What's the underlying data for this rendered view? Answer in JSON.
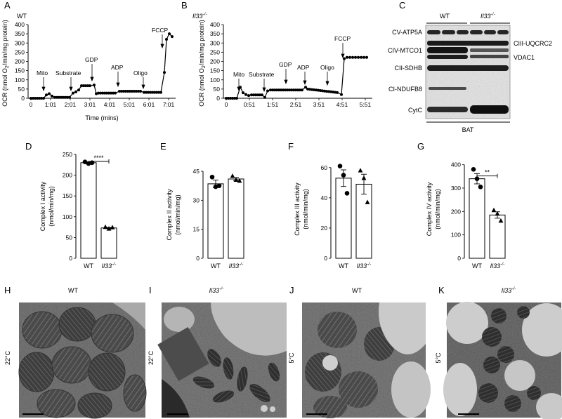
{
  "panels": {
    "A": "A",
    "B": "B",
    "C": "C",
    "D": "D",
    "E": "E",
    "F": "F",
    "G": "G",
    "H": "H",
    "I": "I",
    "J": "J",
    "K": "K"
  },
  "geno": {
    "wt": "WT",
    "ko": "Il33",
    "ko_sup": "-/-"
  },
  "oxygraph": {
    "ylabel_a": "OCR (nmol O",
    "ylabel_sub": "2",
    "ylabel_b": "/min/mg protein)",
    "xlabel": "Time (mins)",
    "a_yticks": [
      "0",
      "50",
      "100",
      "150",
      "200",
      "250",
      "300",
      "350",
      "400"
    ],
    "a_xticks": [
      "0",
      "1:01",
      "2:01",
      "3:01",
      "4:01",
      "5:01",
      "6:01",
      "7:01"
    ],
    "b_yticks": [
      "0",
      "50",
      "100",
      "150",
      "200",
      "250",
      "300",
      "350",
      "400"
    ],
    "b_xticks": [
      "0",
      "0:51",
      "1:51",
      "2:51",
      "3:51",
      "4:51",
      "5:51"
    ],
    "a_annotations": [
      "Mito",
      "Substrate",
      "GDP",
      "ADP",
      "Oligo",
      "FCCP"
    ],
    "b_annotations": [
      "Mito",
      "Substrate",
      "GDP",
      "ADP",
      "Oligo",
      "FCCP"
    ]
  },
  "blot": {
    "bands": [
      "CV-ATP5A",
      "CIV-MTCO1",
      "CII-SDHB",
      "CI-NDUFB8",
      "CytC"
    ],
    "right_bands": [
      "CIII-UQCRC2",
      "VDAC1"
    ],
    "tissue": "BAT"
  },
  "chart_data": [
    {
      "type": "bar",
      "panel": "D",
      "ylabel": "Complex I activity",
      "unit": "(nmol/min/mg)",
      "categories": [
        "WT",
        "Il33-/-"
      ],
      "values": [
        230,
        73
      ],
      "ylim": [
        0,
        250
      ],
      "yticks": [
        "0",
        "50",
        "100",
        "150",
        "200",
        "250"
      ],
      "points": [
        [
          232,
          228,
          230
        ],
        [
          75,
          71,
          74
        ]
      ],
      "sig": "****"
    },
    {
      "type": "bar",
      "panel": "E",
      "ylabel": "Complex II activity",
      "unit": "(nmol/min/mg)",
      "categories": [
        "WT",
        "Il33-/-"
      ],
      "values": [
        38.5,
        41
      ],
      "ylim": [
        0,
        45
      ],
      "yticks": [
        "0",
        "15",
        "30",
        "45"
      ],
      "points": [
        [
          42,
          37,
          37.5
        ],
        [
          42.5,
          40.5,
          40
        ]
      ],
      "sig": ""
    },
    {
      "type": "bar",
      "panel": "F",
      "ylabel": "Complex III activity",
      "unit": "(nmol/min/mg)",
      "categories": [
        "WT",
        "Il33-/-"
      ],
      "values": [
        53,
        49
      ],
      "ylim": [
        0,
        65
      ],
      "yticks": [
        "0",
        "20",
        "40",
        "60"
      ],
      "points": [
        [
          61,
          55,
          43
        ],
        [
          58,
          53,
          37
        ]
      ],
      "sig": ""
    },
    {
      "type": "bar",
      "panel": "G",
      "ylabel": "Complex IV activity",
      "unit": "(nmol/min/mg)",
      "categories": [
        "WT",
        "Il33-/-"
      ],
      "values": [
        340,
        185
      ],
      "ylim": [
        0,
        420
      ],
      "yticks": [
        "0",
        "100",
        "200",
        "300",
        "400"
      ],
      "points": [
        [
          380,
          340,
          305
        ],
        [
          205,
          190,
          160
        ]
      ],
      "sig": "**"
    }
  ],
  "em": {
    "temp_warm": "22°C",
    "temp_cold": "5°C"
  }
}
